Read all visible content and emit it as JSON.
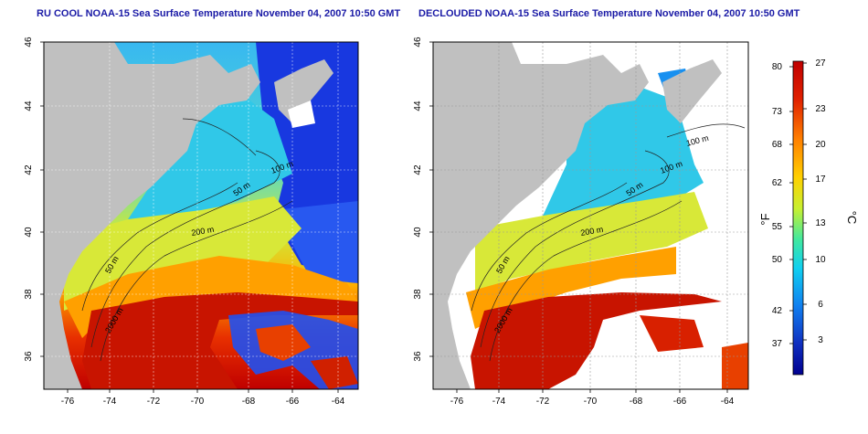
{
  "panels": [
    {
      "title": "RU COOL NOAA-15 Sea Surface Temperature November 04, 2007 10:50 GMT",
      "x_ticks": [
        "-76",
        "-74",
        "-72",
        "-70",
        "-68",
        "-66",
        "-64"
      ],
      "y_ticks": [
        "36",
        "38",
        "40",
        "42",
        "44",
        "46"
      ],
      "contour_labels": [
        "100 m",
        "50 m",
        "200 m",
        "50 m",
        "2000 m"
      ]
    },
    {
      "title": "DECLOUDED NOAA-15 Sea Surface Temperature November 04, 2007 10:50 GMT",
      "x_ticks": [
        "-76",
        "-74",
        "-72",
        "-70",
        "-68",
        "-66",
        "-64"
      ],
      "y_ticks": [
        "36",
        "38",
        "40",
        "42",
        "44",
        "46"
      ],
      "contour_labels": [
        "100 m",
        "100 m",
        "50 m",
        "200 m",
        "50 m",
        "2000 m"
      ]
    }
  ],
  "colorbar": {
    "fahrenheit_ticks": [
      "80",
      "73",
      "68",
      "62",
      "55",
      "50",
      "42",
      "37"
    ],
    "celsius_ticks": [
      "27",
      "23",
      "20",
      "17",
      "13",
      "10",
      "6",
      "3"
    ],
    "left_unit": "°F",
    "right_unit": "°C",
    "gradient": [
      "#d00000",
      "#ff4000",
      "#ff9000",
      "#ffd800",
      "#c8f030",
      "#50e880",
      "#10d8e8",
      "#1090f0",
      "#1040d0",
      "#0000a0"
    ]
  },
  "map_colors": {
    "land": "#c0c0c0",
    "cloud_removed": "#ffffff",
    "warm": "#c81000",
    "cold": "#1a3ae0"
  }
}
